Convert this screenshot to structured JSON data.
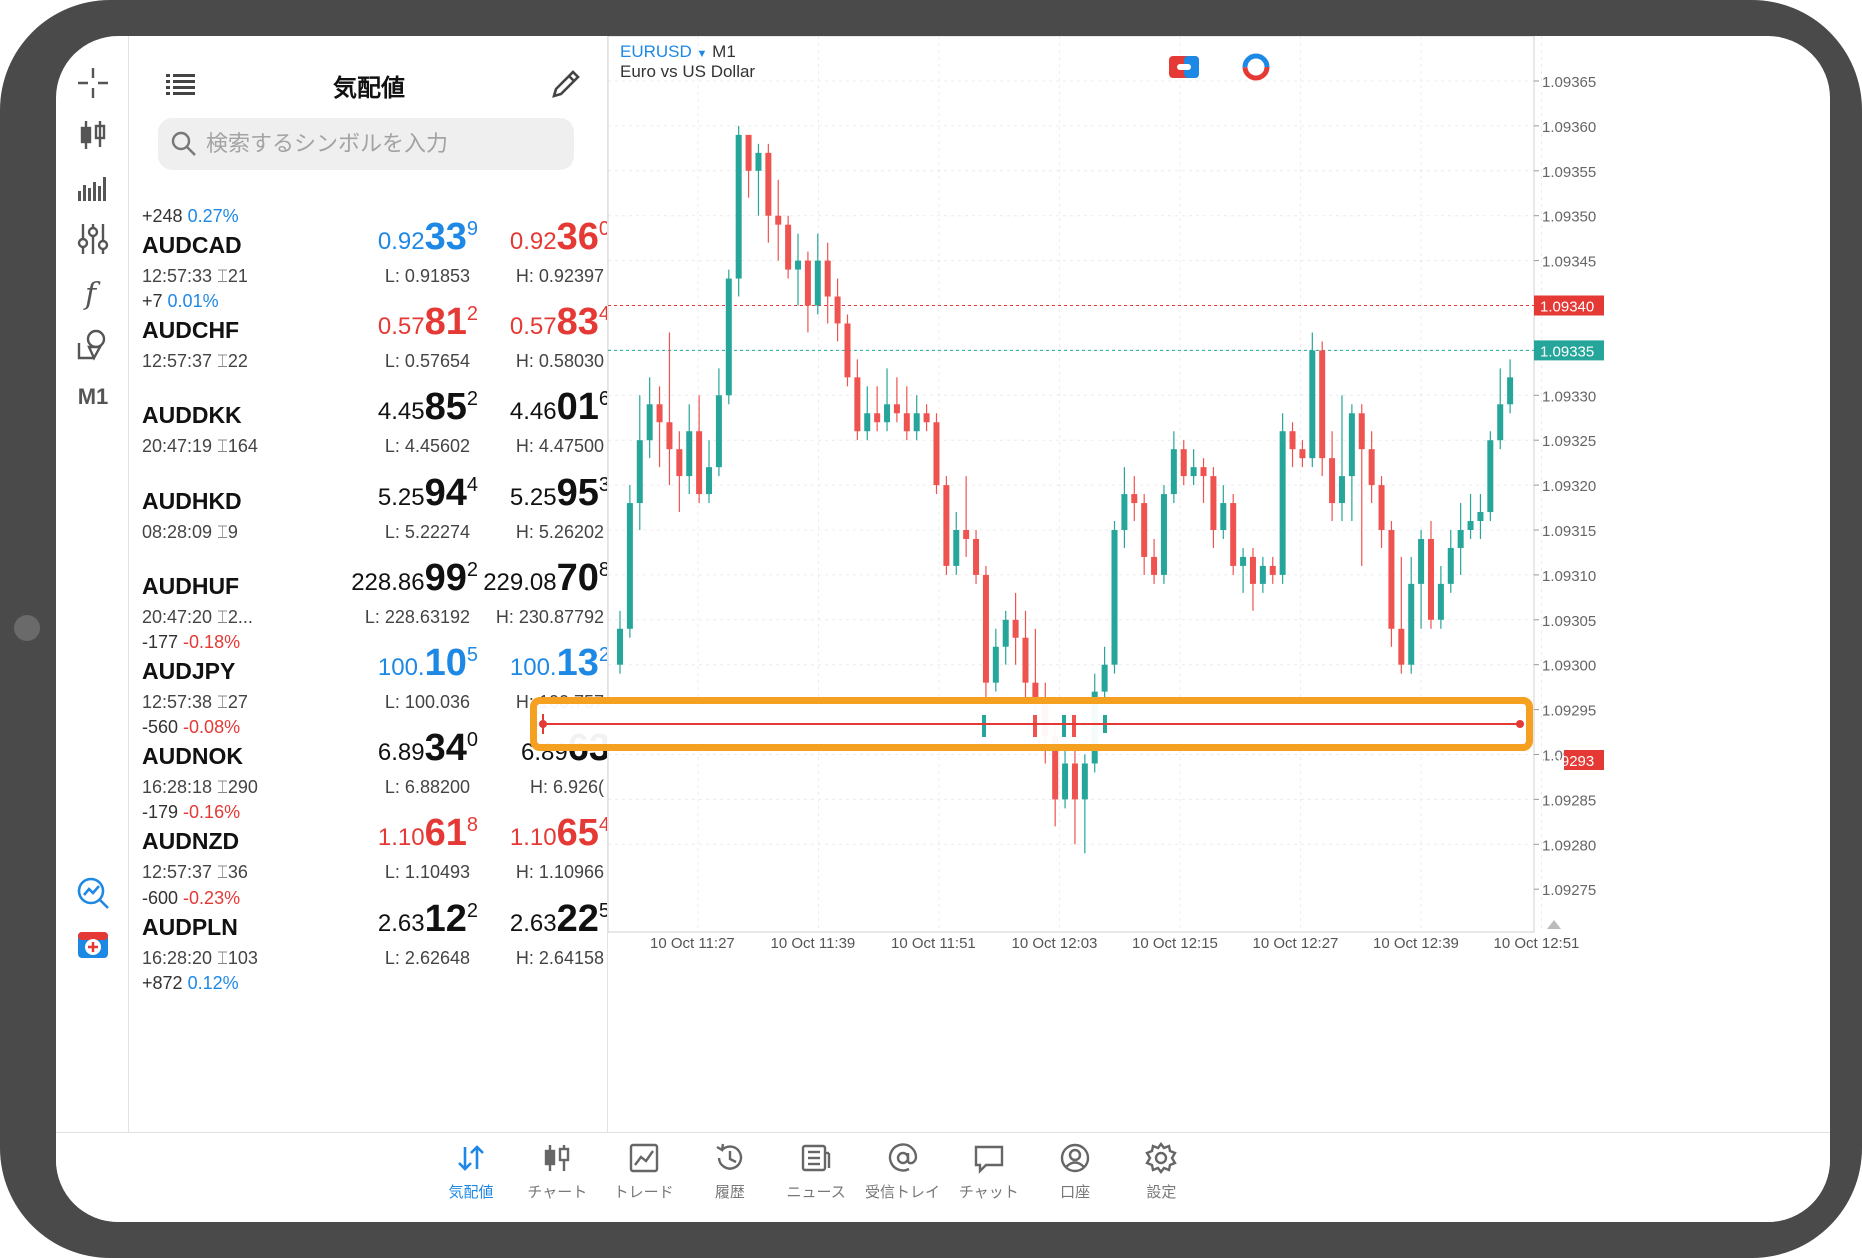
{
  "toolbar": {
    "items": [
      "crosshair-icon",
      "candles-icon",
      "volume-bars-icon",
      "settings-sliders-icon",
      "function-icon",
      "objects-icon"
    ],
    "timeframe": "M1"
  },
  "quotes": {
    "title": "気配値",
    "search_placeholder": "検索するシンボルを入力",
    "rows": [
      {
        "change": "+248",
        "pct": "0.27%",
        "symbol": "AUDCAD",
        "time": "12:57:33",
        "spread": "21",
        "bid": {
          "small": "0.92",
          "big": "33",
          "sup": "9",
          "color": "blue"
        },
        "ask": {
          "small": "0.92",
          "big": "36",
          "sup": "0",
          "color": "red"
        },
        "low": "L: 0.91853",
        "high": "H: 0.92397"
      },
      {
        "change": "+7",
        "pct": "0.01%",
        "symbol": "AUDCHF",
        "time": "12:57:37",
        "spread": "22",
        "bid": {
          "small": "0.57",
          "big": "81",
          "sup": "2",
          "color": "red"
        },
        "ask": {
          "small": "0.57",
          "big": "83",
          "sup": "4",
          "color": "red"
        },
        "low": "L: 0.57654",
        "high": "H: 0.58030"
      },
      {
        "change": "",
        "pct": "",
        "symbol": "AUDDKK",
        "time": "20:47:19",
        "spread": "164",
        "bid": {
          "small": "4.45",
          "big": "85",
          "sup": "2",
          "color": "black"
        },
        "ask": {
          "small": "4.46",
          "big": "01",
          "sup": "6",
          "color": "black"
        },
        "low": "L: 4.45602",
        "high": "H: 4.47500"
      },
      {
        "change": "",
        "pct": "",
        "symbol": "AUDHKD",
        "time": "08:28:09",
        "spread": "9",
        "bid": {
          "small": "5.25",
          "big": "94",
          "sup": "4",
          "color": "black"
        },
        "ask": {
          "small": "5.25",
          "big": "95",
          "sup": "3",
          "color": "black"
        },
        "low": "L: 5.22274",
        "high": "H: 5.26202"
      },
      {
        "change": "",
        "pct": "",
        "symbol": "AUDHUF",
        "time": "20:47:20",
        "spread": "2...",
        "bid": {
          "small": "228.86",
          "big": "99",
          "sup": "2",
          "color": "black"
        },
        "ask": {
          "small": "229.08",
          "big": "70",
          "sup": "8",
          "color": "black"
        },
        "low": "L: 228.63192",
        "high": "H: 230.87792"
      },
      {
        "change": "-177",
        "pct": "-0.18%",
        "symbol": "AUDJPY",
        "time": "12:57:38",
        "spread": "27",
        "bid": {
          "small": "100.",
          "big": "10",
          "sup": "5",
          "color": "blue"
        },
        "ask": {
          "small": "100.",
          "big": "13",
          "sup": "2",
          "color": "blue"
        },
        "low": "L: 100.036",
        "high": "H: 100.757"
      },
      {
        "change": "-560",
        "pct": "-0.08%",
        "symbol": "AUDNOK",
        "time": "16:28:18",
        "spread": "290",
        "bid": {
          "small": "6.89",
          "big": "34",
          "sup": "0",
          "color": "black"
        },
        "ask": {
          "small": "6.89",
          "big": "63",
          "sup": "",
          "color": "black"
        },
        "low": "L: 6.88200",
        "high": "H: 6.926("
      },
      {
        "change": "-179",
        "pct": "-0.16%",
        "symbol": "AUDNZD",
        "time": "12:57:37",
        "spread": "36",
        "bid": {
          "small": "1.10",
          "big": "61",
          "sup": "8",
          "color": "red"
        },
        "ask": {
          "small": "1.10",
          "big": "65",
          "sup": "4",
          "color": "red"
        },
        "low": "L: 1.10493",
        "high": "H: 1.10966"
      },
      {
        "change": "-600",
        "pct": "-0.23%",
        "symbol": "AUDPLN",
        "time": "16:28:20",
        "spread": "103",
        "bid": {
          "small": "2.63",
          "big": "12",
          "sup": "2",
          "color": "black"
        },
        "ask": {
          "small": "2.63",
          "big": "22",
          "sup": "5",
          "color": "black"
        },
        "low": "L: 2.62648",
        "high": "H: 2.64158"
      },
      {
        "change": "+872",
        "pct": "0.12%",
        "symbol": "",
        "time": "",
        "spread": "",
        "bid": {
          "small": "",
          "big": "",
          "sup": "",
          "color": "black"
        },
        "ask": {
          "small": "",
          "big": "",
          "sup": "",
          "color": "black"
        },
        "low": "",
        "high": ""
      }
    ]
  },
  "chart": {
    "symbol": "EURUSD",
    "timeframe": "M1",
    "description": "Euro vs US Dollar",
    "price_labels": [
      "1.09365",
      "1.09360",
      "1.09355",
      "1.09350",
      "1.09345",
      "1.09335",
      "1.09330",
      "1.09325",
      "1.09320",
      "1.09315",
      "1.09310",
      "1.09305",
      "1.09300",
      "1.09295",
      "1.09290",
      "1.09285",
      "1.09280",
      "1.09275"
    ],
    "ask_line": "1.09340",
    "bid_line": "1.09335",
    "hline_label": "1.09293",
    "time_labels": [
      "10 Oct 11:27",
      "10 Oct 11:39",
      "10 Oct 11:51",
      "10 Oct 12:03",
      "10 Oct 12:15",
      "10 Oct 12:27",
      "10 Oct 12:39",
      "10 Oct 12:51"
    ],
    "colors": {
      "bull": "#26a69a",
      "bear": "#ef5350",
      "ask": "#e53935",
      "bid": "#26a69a"
    }
  },
  "bottom_nav": [
    {
      "label": "気配値",
      "icon": "quotes-icon",
      "active": true
    },
    {
      "label": "チャート",
      "icon": "chart-icon",
      "active": false
    },
    {
      "label": "トレード",
      "icon": "trade-icon",
      "active": false
    },
    {
      "label": "履歴",
      "icon": "history-icon",
      "active": false
    },
    {
      "label": "ニュース",
      "icon": "news-icon",
      "active": false
    },
    {
      "label": "受信トレイ",
      "icon": "inbox-icon",
      "active": false
    },
    {
      "label": "チャット",
      "icon": "chat-icon",
      "active": false
    },
    {
      "label": "口座",
      "icon": "account-icon",
      "active": false
    },
    {
      "label": "設定",
      "icon": "settings-icon",
      "active": false
    }
  ]
}
